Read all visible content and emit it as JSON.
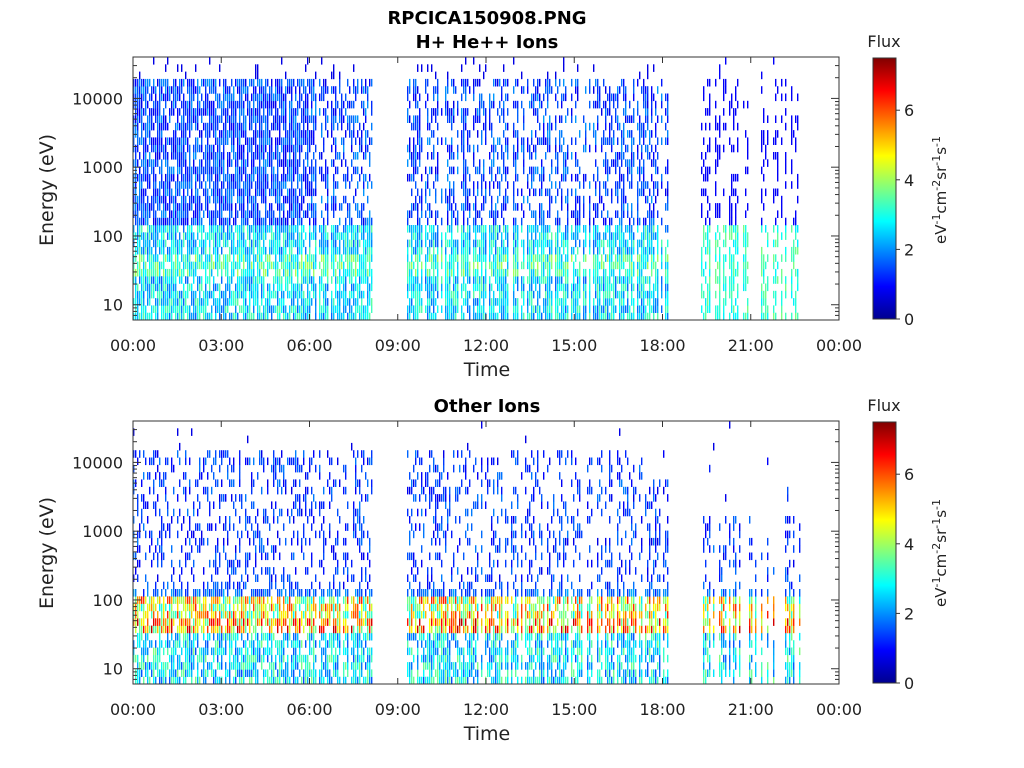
{
  "figure": {
    "title": "RPCICA150908.PNG"
  },
  "chart_data": [
    {
      "type": "heatmap",
      "title": "H+ He++ Ions",
      "xlabel": "Time",
      "ylabel": "Energy (eV)",
      "x_ticks": [
        "00:00",
        "03:00",
        "06:00",
        "09:00",
        "12:00",
        "15:00",
        "18:00",
        "21:00",
        "00:00"
      ],
      "xlim_hours": [
        0,
        24
      ],
      "y_scale": "log",
      "y_ticks": [
        "10",
        "100",
        "1000",
        "10000"
      ],
      "ylim": [
        6,
        40000
      ],
      "data_gaps_hours": [
        [
          8.15,
          9.3
        ],
        [
          18.2,
          19.3
        ]
      ],
      "colorbar": {
        "title": "Flux",
        "label": "eV-1cm-2sr-1s-1",
        "ticks": [
          "0",
          "2",
          "4",
          "6"
        ],
        "range": [
          0,
          7.5
        ],
        "colormap": "jet"
      }
    },
    {
      "type": "heatmap",
      "title": "Other Ions",
      "xlabel": "Time",
      "ylabel": "Energy (eV)",
      "x_ticks": [
        "00:00",
        "03:00",
        "06:00",
        "09:00",
        "12:00",
        "15:00",
        "18:00",
        "21:00",
        "00:00"
      ],
      "xlim_hours": [
        0,
        24
      ],
      "y_scale": "log",
      "y_ticks": [
        "10",
        "100",
        "1000",
        "10000"
      ],
      "ylim": [
        6,
        40000
      ],
      "data_gaps_hours": [
        [
          8.15,
          9.3
        ],
        [
          18.2,
          19.3
        ]
      ],
      "colorbar": {
        "title": "Flux",
        "label": "eV-1cm-2sr-1s-1",
        "ticks": [
          "0",
          "2",
          "4",
          "6"
        ],
        "range": [
          0,
          7.5
        ],
        "colormap": "jet"
      }
    }
  ]
}
